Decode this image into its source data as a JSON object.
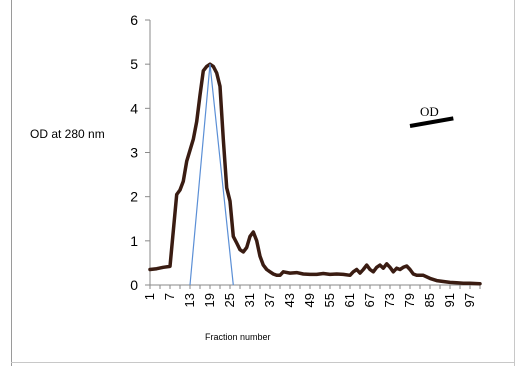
{
  "chart_data": {
    "type": "line",
    "title": "",
    "ylabel": "OD at 280 nm",
    "xlabel": "Fraction number",
    "ylim": [
      0,
      6
    ],
    "yticks": [
      "0",
      "1",
      "2",
      "3",
      "4",
      "5",
      "6"
    ],
    "xticks": [
      "1",
      "4",
      "7",
      "10",
      "13",
      "16",
      "19",
      "22",
      "25",
      "28",
      "31",
      "34",
      "37",
      "40",
      "43",
      "46",
      "49",
      "52",
      "55",
      "58",
      "61",
      "64",
      "67",
      "70",
      "73",
      "76",
      "79",
      "82",
      "85",
      "88",
      "91",
      "94",
      "97",
      "100"
    ],
    "xtick_labels": [
      "1",
      "7",
      "13",
      "19",
      "25",
      "31",
      "37",
      "43",
      "49",
      "55",
      "61",
      "67",
      "73",
      "79",
      "85",
      "91",
      "97"
    ],
    "xlim": [
      1,
      100
    ],
    "legend": {
      "position": "right",
      "entries": [
        "OD"
      ]
    },
    "colors": {
      "od_line": "#3a1c12",
      "fit_line": "#5b8fd6",
      "axis": "#8a8a8a"
    },
    "series": [
      {
        "name": "OD",
        "x": [
          1,
          3,
          5,
          7,
          9,
          10,
          11,
          12,
          13,
          14,
          15,
          16,
          17,
          18,
          19,
          20,
          21,
          22,
          23,
          24,
          25,
          26,
          27,
          28,
          29,
          30,
          31,
          32,
          33,
          34,
          35,
          36,
          37,
          38,
          39,
          40,
          41,
          43,
          45,
          47,
          49,
          51,
          53,
          55,
          57,
          59,
          61,
          62,
          63,
          64,
          65,
          66,
          67,
          68,
          69,
          70,
          71,
          72,
          73,
          74,
          75,
          76,
          77,
          78,
          79,
          80,
          81,
          83,
          85,
          87,
          89,
          91,
          93,
          95,
          97,
          100
        ],
        "y": [
          0.35,
          0.37,
          0.4,
          0.42,
          2.05,
          2.15,
          2.35,
          2.8,
          3.05,
          3.3,
          3.7,
          4.3,
          4.85,
          4.95,
          5.0,
          4.95,
          4.8,
          4.5,
          3.3,
          2.2,
          1.9,
          1.1,
          0.95,
          0.8,
          0.75,
          0.85,
          1.1,
          1.2,
          1.0,
          0.65,
          0.45,
          0.35,
          0.3,
          0.25,
          0.22,
          0.22,
          0.3,
          0.27,
          0.28,
          0.25,
          0.24,
          0.24,
          0.26,
          0.24,
          0.25,
          0.24,
          0.22,
          0.3,
          0.35,
          0.27,
          0.35,
          0.45,
          0.35,
          0.3,
          0.4,
          0.45,
          0.38,
          0.48,
          0.4,
          0.3,
          0.38,
          0.35,
          0.4,
          0.43,
          0.35,
          0.25,
          0.22,
          0.22,
          0.15,
          0.1,
          0.08,
          0.06,
          0.05,
          0.04,
          0.04,
          0.03
        ]
      },
      {
        "name": "",
        "x": [
          13,
          19,
          26
        ],
        "y": [
          0,
          5.0,
          0
        ]
      }
    ]
  }
}
